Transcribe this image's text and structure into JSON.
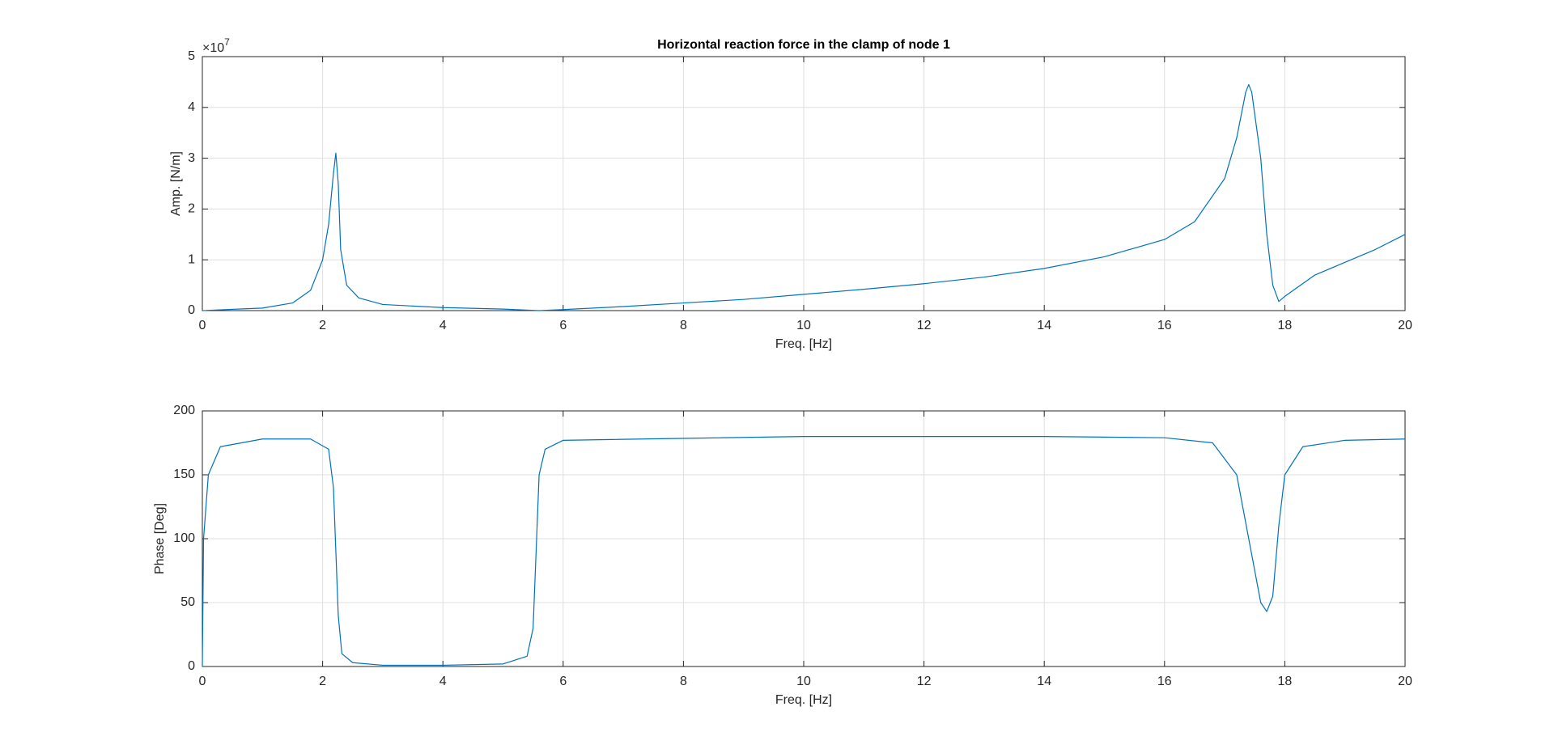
{
  "chart_data": [
    {
      "type": "line",
      "title": "Horizontal reaction force in the clamp of node 1",
      "x_label": "Freq. [Hz]",
      "y_label": "Amp. [N/m]",
      "y_multiplier": "×10",
      "y_multiplier_exponent": "7",
      "xlim": [
        0,
        20
      ],
      "xticks": [
        0,
        2,
        4,
        6,
        8,
        10,
        12,
        14,
        16,
        18,
        20
      ],
      "ylim": [
        0,
        50000000
      ],
      "yticks": [
        0,
        {
          "value": 10000000,
          "label": "1"
        },
        {
          "value": 20000000,
          "label": "2"
        },
        {
          "value": 30000000,
          "label": "3"
        },
        {
          "value": 40000000,
          "label": "4"
        },
        {
          "value": 50000000,
          "label": "5"
        }
      ],
      "grid": true,
      "x": [
        0,
        1,
        1.5,
        1.8,
        2.0,
        2.1,
        2.18,
        2.22,
        2.26,
        2.3,
        2.4,
        2.6,
        3,
        4,
        5,
        5.6,
        6,
        7,
        8,
        9,
        10,
        11,
        12,
        13,
        14,
        15,
        16,
        16.5,
        17,
        17.2,
        17.35,
        17.4,
        17.45,
        17.6,
        17.7,
        17.8,
        17.9,
        18,
        18.5,
        19,
        19.5,
        20
      ],
      "series": [
        {
          "color": "#0072bd",
          "values": [
            0,
            500000,
            1500000,
            4000000,
            10000000,
            17000000,
            27000000,
            31000000,
            25000000,
            12000000,
            5000000,
            2500000,
            1200000,
            600000,
            300000,
            0,
            200000,
            800000,
            1500000,
            2200000,
            3200000,
            4200000,
            5300000,
            6600000,
            8300000,
            10600000,
            14000000,
            17500000,
            26000000,
            34000000,
            43000000,
            44500000,
            43000000,
            30000000,
            15000000,
            5000000,
            1800000,
            2800000,
            7000000,
            9500000,
            12000000,
            15000000
          ]
        }
      ]
    },
    {
      "type": "line",
      "x_label": "Freq. [Hz]",
      "y_label": "Phase [Deg]",
      "xlim": [
        0,
        20
      ],
      "xticks": [
        0,
        2,
        4,
        6,
        8,
        10,
        12,
        14,
        16,
        18,
        20
      ],
      "ylim": [
        0,
        200
      ],
      "yticks": [
        0,
        50,
        100,
        150,
        200
      ],
      "grid": true,
      "x": [
        0,
        0.02,
        0.1,
        0.3,
        1,
        1.8,
        2.1,
        2.18,
        2.22,
        2.26,
        2.32,
        2.5,
        3,
        4,
        5,
        5.4,
        5.5,
        5.55,
        5.6,
        5.7,
        6,
        10,
        14,
        16,
        16.8,
        17.2,
        17.4,
        17.6,
        17.7,
        17.8,
        17.9,
        18.0,
        18.3,
        19,
        20
      ],
      "series": [
        {
          "color": "#0072bd",
          "values": [
            0,
            100,
            150,
            172,
            178,
            178,
            170,
            140,
            90,
            40,
            10,
            3,
            1,
            1,
            2,
            8,
            30,
            90,
            150,
            170,
            177,
            180,
            180,
            179,
            175,
            150,
            100,
            50,
            43,
            55,
            110,
            150,
            172,
            177,
            178
          ]
        }
      ]
    }
  ]
}
